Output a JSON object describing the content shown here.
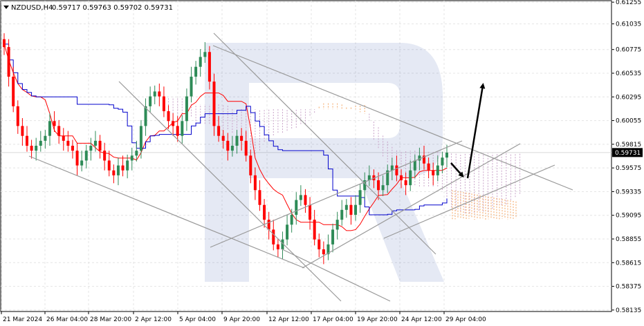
{
  "chart_data": {
    "type": "candlestick",
    "title": "NZDUSD,H4",
    "ohlc_header": [
      "0.59717",
      "0.59763",
      "0.59702",
      "0.59731"
    ],
    "current_price": 0.59731,
    "current_price_label": "0.59731",
    "y_ticks": [
      "0.61255",
      "0.61035",
      "0.60775",
      "0.60535",
      "0.60295",
      "0.60055",
      "0.59815",
      "0.59575",
      "0.59335",
      "0.59095",
      "0.58855",
      "0.58615",
      "0.58375",
      "0.58135"
    ],
    "x_ticks": [
      "21 Mar 2024",
      "26 Mar 04:00",
      "28 Mar 20:00",
      "2 Apr 12:00",
      "5 Apr 04:00",
      "9 Apr 20:00",
      "12 Apr 12:00",
      "17 Apr 04:00",
      "19 Apr 20:00",
      "24 Apr 12:00",
      "29 Apr 04:00"
    ],
    "ylim": [
      0.5812,
      0.6127
    ],
    "grid": true,
    "colors": {
      "bull": "#2e8b57",
      "bear": "#ff0000",
      "tenkan": "#ff0000",
      "kijun": "#0000cc",
      "senkou_a": "#f4a460",
      "senkou_b": "#c8a2c8",
      "trendline": "#999999",
      "forecast_arrow": "#000000",
      "price_tag": "#000000"
    },
    "indicator": "Ichimoku Kinko Hyo",
    "forecast": "short dip toward 0.5955, then rise toward 0.6055",
    "series": [
      {
        "name": "close",
        "values": [
          0.608,
          0.605,
          0.602,
          0.6,
          0.599,
          0.598,
          0.5975,
          0.598,
          0.5985,
          0.599,
          0.6005,
          0.6,
          0.599,
          0.5985,
          0.598,
          0.5975,
          0.596,
          0.5965,
          0.5975,
          0.598,
          0.5985,
          0.5975,
          0.5965,
          0.5955,
          0.595,
          0.596,
          0.5955,
          0.5965,
          0.597,
          0.5975,
          0.6,
          0.602,
          0.603,
          0.6035,
          0.603,
          0.6015,
          0.6005,
          0.6,
          0.599,
          0.6005,
          0.603,
          0.605,
          0.606,
          0.607,
          0.6075,
          0.6045,
          0.6,
          0.599,
          0.5985,
          0.5975,
          0.598,
          0.599,
          0.5985,
          0.597,
          0.595,
          0.5935,
          0.592,
          0.5905,
          0.5895,
          0.588,
          0.5875,
          0.5885,
          0.59,
          0.591,
          0.5925,
          0.593,
          0.592,
          0.5905,
          0.5885,
          0.5875,
          0.587,
          0.588,
          0.5895,
          0.5905,
          0.5915,
          0.592,
          0.591,
          0.592,
          0.5935,
          0.5945,
          0.595,
          0.5945,
          0.5935,
          0.594,
          0.5955,
          0.596,
          0.595,
          0.5945,
          0.594,
          0.5955,
          0.5965,
          0.597,
          0.5962,
          0.5955,
          0.595,
          0.596,
          0.5968,
          0.5973
        ]
      }
    ]
  }
}
